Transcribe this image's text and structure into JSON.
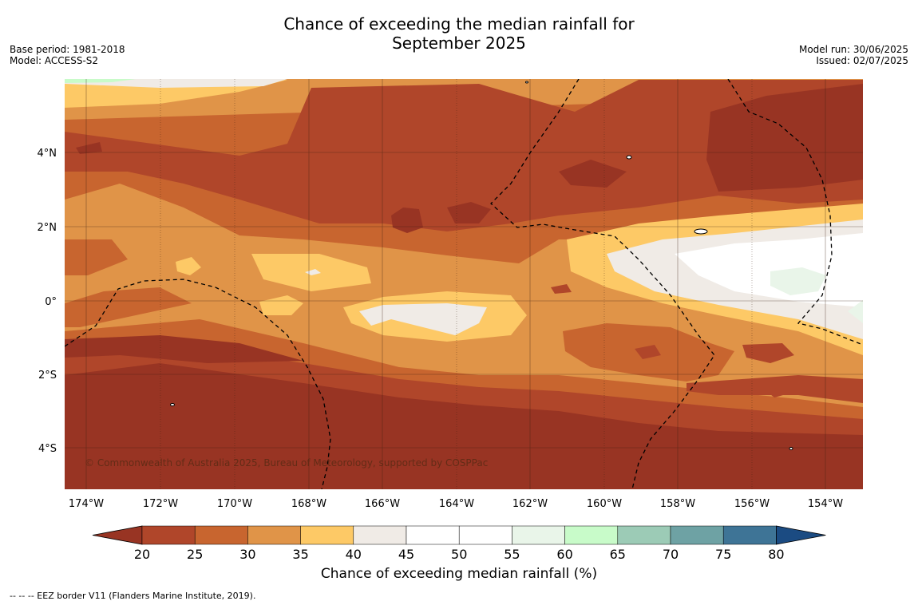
{
  "title": "Chance of exceeding the median rainfall for\nSeptember 2025",
  "meta_left": [
    "Base period: 1981-2018",
    "Model: ACCESS-S2"
  ],
  "meta_right": [
    "Model run: 30/06/2025",
    "Issued: 02/07/2025"
  ],
  "copyright": "© Commonwealth of Australia 2025, Bureau of Meteorology, supported by COSPPac",
  "colorbar": {
    "label": "Chance of exceeding median rainfall (%)",
    "ticks": [
      "20",
      "25",
      "30",
      "35",
      "40",
      "45",
      "50",
      "55",
      "60",
      "65",
      "70",
      "75",
      "80"
    ],
    "colors": [
      "#983423",
      "#b0462a",
      "#c8652f",
      "#e09448",
      "#fdc966",
      "#f0ebe6",
      "#ffffff",
      "#ffffff",
      "#e9f5e9",
      "#c8fbc9",
      "#9ccbb6",
      "#6ea2a4",
      "#3e7496",
      "#1b4b82"
    ]
  },
  "footnote": "--  --  -- EEZ border V11 (Flanders Marine Institute, 2019).",
  "axes": {
    "x_ticks": [
      "174°W",
      "172°W",
      "170°W",
      "168°W",
      "166°W",
      "164°W",
      "162°W",
      "160°W",
      "158°W",
      "156°W",
      "154°W"
    ],
    "y_ticks": [
      "4°N",
      "2°N",
      "0°",
      "2°S",
      "4°S"
    ]
  }
}
